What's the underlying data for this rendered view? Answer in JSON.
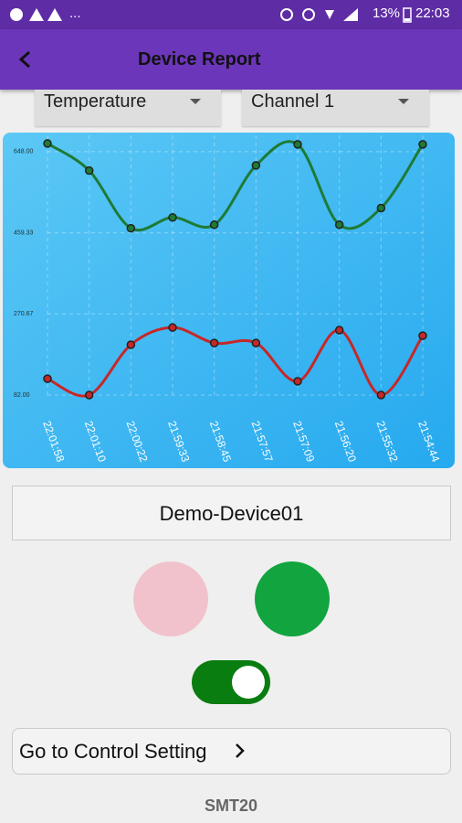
{
  "status_bar": {
    "more": "...",
    "battery": "13%",
    "time": "22:03"
  },
  "header": {
    "title": "Device Report"
  },
  "dropdowns": [
    "Temperature",
    "Channel 1"
  ],
  "chart_data": {
    "type": "line",
    "categories": [
      "22:01:58",
      "22:01:10",
      "22:00:22",
      "21:59:33",
      "21:58:45",
      "21:57:57",
      "21:57:09",
      "21:56:20",
      "21:55:32",
      "21:54:44"
    ],
    "series": [
      {
        "color": "#1e7b35",
        "values": [
          667,
          604,
          470,
          495,
          478,
          616,
          665,
          478,
          517,
          665
        ]
      },
      {
        "color": "#c62828",
        "values": [
          120,
          82,
          199,
          239,
          203,
          203,
          114,
          233,
          82,
          220
        ]
      }
    ],
    "ylim": [
      82,
      686
    ],
    "yticks": [
      {
        "value": 82,
        "label": "82.00"
      },
      {
        "value": 270.67,
        "label": "270.67"
      },
      {
        "value": 459.33,
        "label": "459.33"
      },
      {
        "value": 648,
        "label": "648.00"
      }
    ],
    "grid": true
  },
  "device_name": "Demo-Device01",
  "control_button": "Go to Control Setting",
  "footer": "SMT20"
}
